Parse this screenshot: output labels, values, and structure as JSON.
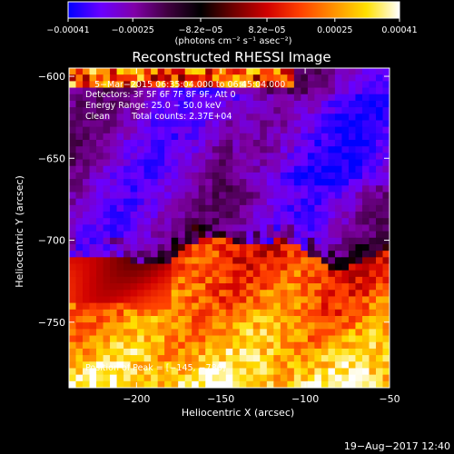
{
  "chart_data": {
    "type": "heatmap",
    "title": "Reconstructed RHESSI Image",
    "xlabel": "Heliocentric X (arcsec)",
    "ylabel": "Heliocentric Y (arcsec)",
    "xlim": [
      -240,
      -50
    ],
    "ylim": [
      -790,
      -595
    ],
    "x_ticks": [
      -200,
      -150,
      -100,
      -50
    ],
    "x_tick_labels": [
      "−200",
      "−150",
      "−100",
      "−50"
    ],
    "y_ticks": [
      -600,
      -650,
      -700,
      -750
    ],
    "y_tick_labels": [
      "−600",
      "−650",
      "−700",
      "−750"
    ],
    "colorbar": {
      "range": [
        -0.00041,
        0.00041
      ],
      "ticks": [
        -0.00041,
        -0.00025,
        -8.2e-05,
        8.2e-05,
        0.00025,
        0.00041
      ],
      "tick_labels": [
        "−0.00041",
        "−0.00025",
        "−8.2e−05",
        "8.2e−05",
        "0.00025",
        "0.00041"
      ],
      "unit_label": "(photons cm⁻² s⁻¹ asec⁻²)",
      "colormap": [
        "#0000ff",
        "#6a00ff",
        "#8000a8",
        "#400040",
        "#000000",
        "#700000",
        "#d00000",
        "#ff4000",
        "#ff9000",
        "#ffe000",
        "#ffffff"
      ]
    },
    "annotations": [
      "5−Mar−2015 06:35:04.000 to 06:45:04.000",
      "Detectors: 3F 5F 6F 7F 8F 9F, Att 0",
      "Energy Range: 25.0 − 50.0 keV",
      "Clean",
      "Total counts: 2.37E+04",
      "Position of Peak = [−145, −786]"
    ],
    "peak_position": [
      -145,
      -786
    ],
    "image_grid": {
      "ncols": 47,
      "nrows": 49,
      "description_regions": [
        {
          "region": "upper",
          "y_range": [
            -710,
            -595
          ],
          "level": "negative (blue/purple)"
        },
        {
          "region": "lower",
          "y_range": [
            -790,
            -710
          ],
          "level": "positive (red/yellow/white)"
        }
      ]
    }
  },
  "footer": {
    "timestamp": "19−Aug−2017 12:40"
  }
}
